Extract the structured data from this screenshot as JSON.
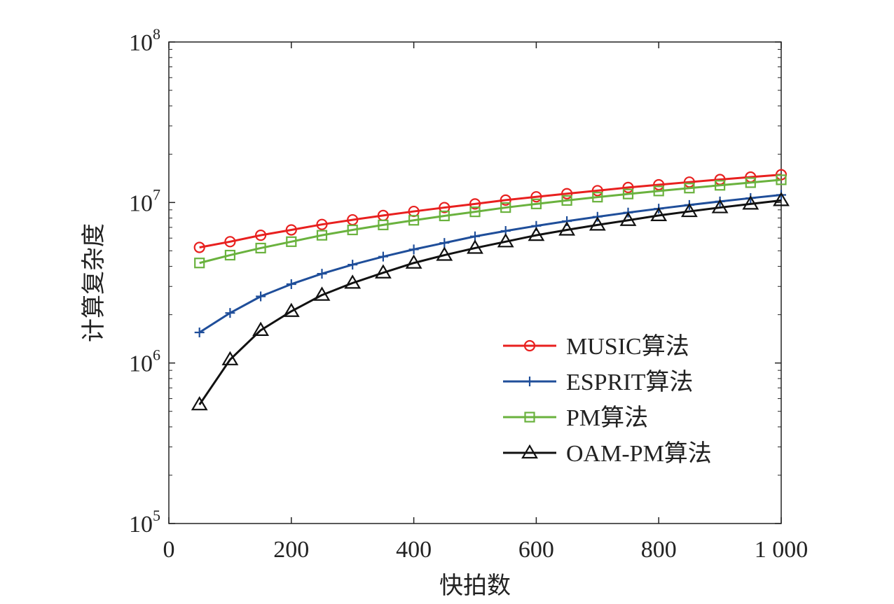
{
  "chart_data": {
    "type": "line",
    "title": "",
    "xlabel": "快拍数",
    "ylabel": "计算复杂度",
    "xlim": [
      0,
      1000
    ],
    "ylim": [
      100000,
      100000000
    ],
    "yscale": "log",
    "x_ticks": [
      {
        "value": 0,
        "label": "0"
      },
      {
        "value": 200,
        "label": "200"
      },
      {
        "value": 400,
        "label": "400"
      },
      {
        "value": 600,
        "label": "600"
      },
      {
        "value": 800,
        "label": "800"
      },
      {
        "value": 1000,
        "label": "1 000"
      }
    ],
    "y_ticks": [
      {
        "value": 100000,
        "base": "10",
        "exp": "5"
      },
      {
        "value": 1000000,
        "base": "10",
        "exp": "6"
      },
      {
        "value": 10000000,
        "base": "10",
        "exp": "7"
      },
      {
        "value": 100000000,
        "base": "10",
        "exp": "8"
      }
    ],
    "grid": false,
    "legend_position": "bottom-right",
    "x": [
      50,
      100,
      150,
      200,
      250,
      300,
      350,
      400,
      450,
      500,
      550,
      600,
      650,
      700,
      750,
      800,
      850,
      900,
      950,
      1000
    ],
    "series": [
      {
        "name": "MUSIC算法",
        "color": "#e8201f",
        "marker": "circle",
        "values": [
          5250000,
          5700000,
          6250000,
          6750000,
          7300000,
          7800000,
          8300000,
          8800000,
          9300000,
          9800000,
          10350000,
          10850000,
          11350000,
          11850000,
          12400000,
          12900000,
          13400000,
          13900000,
          14400000,
          14900000
        ]
      },
      {
        "name": "ESPRIT算法",
        "color": "#1f4e9a",
        "marker": "plus",
        "values": [
          1550000,
          2050000,
          2600000,
          3100000,
          3600000,
          4100000,
          4600000,
          5100000,
          5600000,
          6150000,
          6650000,
          7150000,
          7650000,
          8150000,
          8650000,
          9150000,
          9650000,
          10150000,
          10650000,
          11150000
        ]
      },
      {
        "name": "PM算法",
        "color": "#6ab23e",
        "marker": "square",
        "values": [
          4200000,
          4700000,
          5200000,
          5700000,
          6250000,
          6750000,
          7250000,
          7750000,
          8250000,
          8750000,
          9300000,
          9800000,
          10300000,
          10800000,
          11300000,
          11800000,
          12300000,
          12800000,
          13300000,
          13850000
        ]
      },
      {
        "name": "OAM-PM算法",
        "color": "#111111",
        "marker": "triangle",
        "values": [
          550000,
          1050000,
          1600000,
          2100000,
          2650000,
          3150000,
          3650000,
          4200000,
          4700000,
          5200000,
          5700000,
          6250000,
          6750000,
          7250000,
          7750000,
          8300000,
          8800000,
          9300000,
          9800000,
          10300000
        ]
      }
    ]
  }
}
